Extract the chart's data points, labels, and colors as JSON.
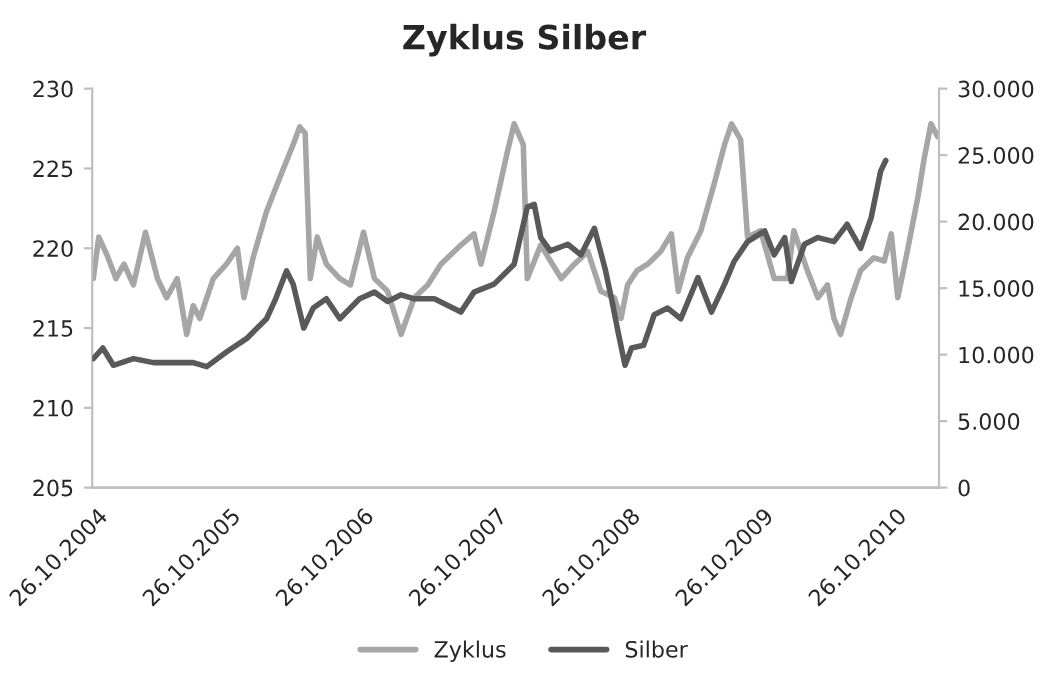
{
  "chart_data": {
    "type": "line",
    "title": "Zyklus Silber",
    "xlim": [
      "2004-10-13",
      "2011-02-21"
    ],
    "xticks": [
      {
        "value": "2004-10-26",
        "label": "26.10.2004"
      },
      {
        "value": "2005-10-26",
        "label": "26.10.2005"
      },
      {
        "value": "2006-10-26",
        "label": "26.10.2006"
      },
      {
        "value": "2007-10-26",
        "label": "26.10.2007"
      },
      {
        "value": "2008-10-26",
        "label": "26.10.2008"
      },
      {
        "value": "2009-10-26",
        "label": "26.10.2009"
      },
      {
        "value": "2010-10-26",
        "label": "26.10.2010"
      }
    ],
    "ylim": [
      205,
      230
    ],
    "yticks": [
      205,
      210,
      215,
      220,
      225,
      230
    ],
    "y2lim": [
      0,
      30000
    ],
    "y2ticks": [
      {
        "value": 0,
        "label": "0"
      },
      {
        "value": 5000,
        "label": "5.000"
      },
      {
        "value": 10000,
        "label": "10.000"
      },
      {
        "value": 15000,
        "label": "15.000"
      },
      {
        "value": 20000,
        "label": "20.000"
      },
      {
        "value": 25000,
        "label": "25.000"
      },
      {
        "value": 30000,
        "label": "30.000"
      }
    ],
    "grid": false,
    "legend": "bottom",
    "marker": "none",
    "line_style": "solid",
    "series": [
      {
        "name": "Zyklus",
        "color": "#a6a6a6",
        "x": [
          "2004-10-16",
          "2004-10-31",
          "2004-11-22",
          "2004-12-17",
          "2005-01-08",
          "2005-02-03",
          "2005-03-08",
          "2005-04-10",
          "2005-05-05",
          "2005-06-03",
          "2005-06-29",
          "2005-07-17",
          "2005-08-04",
          "2005-09-10",
          "2005-10-16",
          "2005-11-15",
          "2005-12-03",
          "2005-12-28",
          "2006-02-03",
          "2006-03-11",
          "2006-04-17",
          "2006-05-05",
          "2006-05-20",
          "2006-06-03",
          "2006-06-22",
          "2006-07-17",
          "2006-08-23",
          "2006-09-21",
          "2006-10-27",
          "2006-11-26",
          "2007-01-01",
          "2007-02-07",
          "2007-03-15",
          "2007-04-21",
          "2007-05-27",
          "2007-07-21",
          "2007-08-26",
          "2007-09-14",
          "2007-10-20",
          "2007-11-26",
          "2007-12-14",
          "2008-01-08",
          "2008-01-19",
          "2008-02-25",
          "2008-04-21",
          "2008-05-27",
          "2008-07-03",
          "2008-08-08",
          "2008-09-14",
          "2008-10-02",
          "2008-10-20",
          "2008-11-15",
          "2008-12-14",
          "2009-01-19",
          "2009-02-17",
          "2009-03-08",
          "2009-04-02",
          "2009-05-09",
          "2009-06-14",
          "2009-07-13",
          "2009-08-01",
          "2009-08-26",
          "2009-09-14",
          "2009-10-20",
          "2009-11-26",
          "2010-01-01",
          "2010-01-19",
          "2010-02-25",
          "2010-03-26",
          "2010-04-21",
          "2010-05-09",
          "2010-05-27",
          "2010-06-25",
          "2010-07-21",
          "2010-08-26",
          "2010-09-24",
          "2010-10-13",
          "2010-10-31",
          "2010-11-26",
          "2010-12-25",
          "2011-01-12",
          "2011-01-30",
          "2011-02-17"
        ],
        "values": [
          218.1,
          220.7,
          219.6,
          218.1,
          219.0,
          217.7,
          221.0,
          218.1,
          216.9,
          218.1,
          214.6,
          216.4,
          215.6,
          218.1,
          219.0,
          220.0,
          216.9,
          219.4,
          222.3,
          224.4,
          226.5,
          227.6,
          227.2,
          218.1,
          220.7,
          219.0,
          218.1,
          217.7,
          221.0,
          218.1,
          217.3,
          214.6,
          216.9,
          217.7,
          219.0,
          220.2,
          220.9,
          219.0,
          222.3,
          226.1,
          227.8,
          226.5,
          218.1,
          220.2,
          218.1,
          219.0,
          219.8,
          217.3,
          216.9,
          215.6,
          217.7,
          218.6,
          219.0,
          219.8,
          220.9,
          217.3,
          219.4,
          221.1,
          224.0,
          226.5,
          227.8,
          226.8,
          220.7,
          221.1,
          218.1,
          218.1,
          221.1,
          218.6,
          216.9,
          217.7,
          215.6,
          214.6,
          216.9,
          218.6,
          219.4,
          219.2,
          220.9,
          216.9,
          219.8,
          223.2,
          225.7,
          227.8,
          227.0
        ]
      },
      {
        "name": "Silber",
        "color": "#595959",
        "axis": "y2",
        "x": [
          "2004-10-16",
          "2004-11-11",
          "2004-12-10",
          "2005-02-03",
          "2005-03-30",
          "2005-05-23",
          "2005-07-17",
          "2005-08-23",
          "2005-10-16",
          "2005-12-10",
          "2006-02-03",
          "2006-02-28",
          "2006-03-30",
          "2006-04-17",
          "2006-05-16",
          "2006-06-11",
          "2006-07-17",
          "2006-08-23",
          "2006-10-16",
          "2006-11-26",
          "2007-01-01",
          "2007-02-07",
          "2007-03-15",
          "2007-05-09",
          "2007-07-21",
          "2007-08-26",
          "2007-10-20",
          "2007-12-14",
          "2008-01-19",
          "2008-02-07",
          "2008-02-25",
          "2008-03-22",
          "2008-05-09",
          "2008-06-14",
          "2008-07-21",
          "2008-08-19",
          "2008-09-06",
          "2008-09-24",
          "2008-10-13",
          "2008-10-31",
          "2008-12-03",
          "2009-01-01",
          "2009-02-07",
          "2009-03-15",
          "2009-05-01",
          "2009-06-07",
          "2009-07-13",
          "2009-08-08",
          "2009-09-14",
          "2009-10-31",
          "2009-11-26",
          "2009-12-25",
          "2010-01-12",
          "2010-02-17",
          "2010-03-26",
          "2010-05-09",
          "2010-06-14",
          "2010-07-21",
          "2010-08-19",
          "2010-09-14",
          "2010-09-28"
        ],
        "values": [
          9700,
          10500,
          9200,
          9700,
          9400,
          9400,
          9400,
          9100,
          10200,
          11200,
          12700,
          14200,
          16300,
          15300,
          12000,
          13500,
          14200,
          12700,
          14200,
          14700,
          14000,
          14500,
          14200,
          14200,
          13200,
          14700,
          15300,
          16800,
          21100,
          21300,
          18800,
          17800,
          18300,
          17500,
          19500,
          16500,
          14200,
          11700,
          9200,
          10500,
          10700,
          13000,
          13500,
          12700,
          15800,
          13200,
          15300,
          17000,
          18500,
          19300,
          17500,
          18800,
          15500,
          18300,
          18800,
          18500,
          19800,
          18000,
          20300,
          23800,
          24600
        ]
      }
    ]
  }
}
